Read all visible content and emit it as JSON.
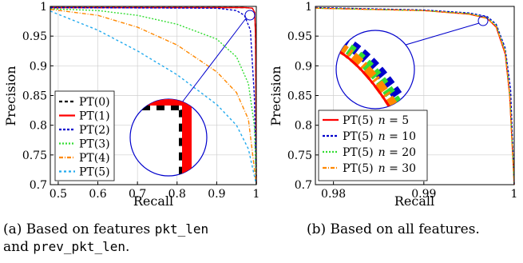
{
  "chart_data": [
    {
      "type": "line",
      "panel": "(a)",
      "xlabel": "Recall",
      "ylabel": "Precision",
      "xlim": [
        0.48,
        1.0
      ],
      "ylim": [
        0.7,
        1.0
      ],
      "xticks": [
        "0.5",
        "0.6",
        "0.7",
        "0.8",
        "0.9",
        "1"
      ],
      "yticks": [
        "0.7",
        "0.75",
        "0.8",
        "0.85",
        "0.9",
        "0.95",
        "1"
      ],
      "legend_position": "bottom-left",
      "grid": true,
      "inset": "zoomed view of the top-right corner",
      "series": [
        {
          "name": "PT(0)",
          "color": "#000000",
          "dash": "4,3",
          "points": [
            [
              0.48,
              0.998
            ],
            [
              0.9,
              0.998
            ],
            [
              0.97,
              0.998
            ],
            [
              0.99,
              0.997
            ],
            [
              0.996,
              0.99
            ],
            [
              0.998,
              0.95
            ],
            [
              0.999,
              0.85
            ],
            [
              1.0,
              0.7
            ]
          ]
        },
        {
          "name": "PT(1)",
          "color": "#ff0000",
          "dash": "",
          "points": [
            [
              0.48,
              0.998
            ],
            [
              0.9,
              0.998
            ],
            [
              0.97,
              0.998
            ],
            [
              0.99,
              0.997
            ],
            [
              0.996,
              0.99
            ],
            [
              0.998,
              0.95
            ],
            [
              0.999,
              0.85
            ],
            [
              1.0,
              0.7
            ]
          ]
        },
        {
          "name": "PT(2)",
          "color": "#0000cc",
          "dash": "3,2",
          "points": [
            [
              0.48,
              0.998
            ],
            [
              0.9,
              0.997
            ],
            [
              0.95,
              0.993
            ],
            [
              0.97,
              0.985
            ],
            [
              0.985,
              0.96
            ],
            [
              0.995,
              0.85
            ],
            [
              1.0,
              0.7
            ]
          ]
        },
        {
          "name": "PT(3)",
          "color": "#33dd33",
          "dash": "2,2",
          "points": [
            [
              0.48,
              0.996
            ],
            [
              0.6,
              0.993
            ],
            [
              0.7,
              0.985
            ],
            [
              0.8,
              0.97
            ],
            [
              0.9,
              0.945
            ],
            [
              0.95,
              0.915
            ],
            [
              0.98,
              0.87
            ],
            [
              0.995,
              0.8
            ],
            [
              1.0,
              0.7
            ]
          ]
        },
        {
          "name": "PT(4)",
          "color": "#ff8800",
          "dash": "5,2,1,2",
          "points": [
            [
              0.48,
              0.995
            ],
            [
              0.6,
              0.985
            ],
            [
              0.7,
              0.965
            ],
            [
              0.8,
              0.935
            ],
            [
              0.9,
              0.89
            ],
            [
              0.95,
              0.855
            ],
            [
              0.98,
              0.81
            ],
            [
              1.0,
              0.7
            ]
          ]
        },
        {
          "name": "PT(5)",
          "color": "#22aaee",
          "dash": "3,3",
          "points": [
            [
              0.48,
              0.992
            ],
            [
              0.6,
              0.96
            ],
            [
              0.7,
              0.925
            ],
            [
              0.8,
              0.885
            ],
            [
              0.9,
              0.835
            ],
            [
              0.95,
              0.8
            ],
            [
              0.98,
              0.76
            ],
            [
              1.0,
              0.7
            ]
          ]
        }
      ]
    },
    {
      "type": "line",
      "panel": "(b)",
      "xlabel": "Recall",
      "ylabel": "Precision",
      "xlim": [
        0.978,
        1.0
      ],
      "ylim": [
        0.7,
        1.0
      ],
      "xticks": [
        "0.98",
        "0.99",
        "1"
      ],
      "yticks": [
        "0.7",
        "0.75",
        "0.8",
        "0.85",
        "0.9",
        "0.95",
        "1"
      ],
      "legend_position": "bottom-left",
      "grid": true,
      "inset": "zoomed view near recall 0.997",
      "series": [
        {
          "name": "PT(5) n = 5",
          "color": "#ff0000",
          "dash": "",
          "points": [
            [
              0.978,
              0.997
            ],
            [
              0.99,
              0.993
            ],
            [
              0.995,
              0.987
            ],
            [
              0.997,
              0.98
            ],
            [
              0.998,
              0.965
            ],
            [
              0.999,
              0.92
            ],
            [
              0.9995,
              0.85
            ],
            [
              1.0,
              0.7
            ]
          ]
        },
        {
          "name": "PT(5) n = 10",
          "color": "#0000cc",
          "dash": "3,2",
          "points": [
            [
              0.978,
              0.998
            ],
            [
              0.99,
              0.994
            ],
            [
              0.995,
              0.989
            ],
            [
              0.997,
              0.983
            ],
            [
              0.998,
              0.97
            ],
            [
              0.999,
              0.93
            ],
            [
              0.9996,
              0.86
            ],
            [
              1.0,
              0.7
            ]
          ]
        },
        {
          "name": "PT(5) n = 20",
          "color": "#33dd33",
          "dash": "2,2",
          "points": [
            [
              0.978,
              0.997
            ],
            [
              0.99,
              0.993
            ],
            [
              0.995,
              0.988
            ],
            [
              0.997,
              0.981
            ],
            [
              0.998,
              0.968
            ],
            [
              0.999,
              0.925
            ],
            [
              0.9995,
              0.855
            ],
            [
              1.0,
              0.7
            ]
          ]
        },
        {
          "name": "PT(5) n = 30",
          "color": "#ff8800",
          "dash": "5,2,1,2",
          "points": [
            [
              0.978,
              0.997
            ],
            [
              0.99,
              0.993
            ],
            [
              0.995,
              0.987
            ],
            [
              0.997,
              0.98
            ],
            [
              0.998,
              0.966
            ],
            [
              0.999,
              0.922
            ],
            [
              0.9995,
              0.852
            ],
            [
              1.0,
              0.7
            ]
          ]
        }
      ]
    }
  ],
  "captions": {
    "a_prefix": "(a) Based on features ",
    "a_mono1": "pkt_len",
    "a_and": " and ",
    "a_mono2": "prev_pkt_len",
    "a_suffix": ".",
    "b": "(b) Based on all features."
  },
  "legend_b_labels": [
    {
      "base": "PT(5)",
      "n": "n",
      "eq": " = 5"
    },
    {
      "base": "PT(5)",
      "n": "n",
      "eq": " = 10"
    },
    {
      "base": "PT(5)",
      "n": "n",
      "eq": " = 20"
    },
    {
      "base": "PT(5)",
      "n": "n",
      "eq": " = 30"
    }
  ]
}
